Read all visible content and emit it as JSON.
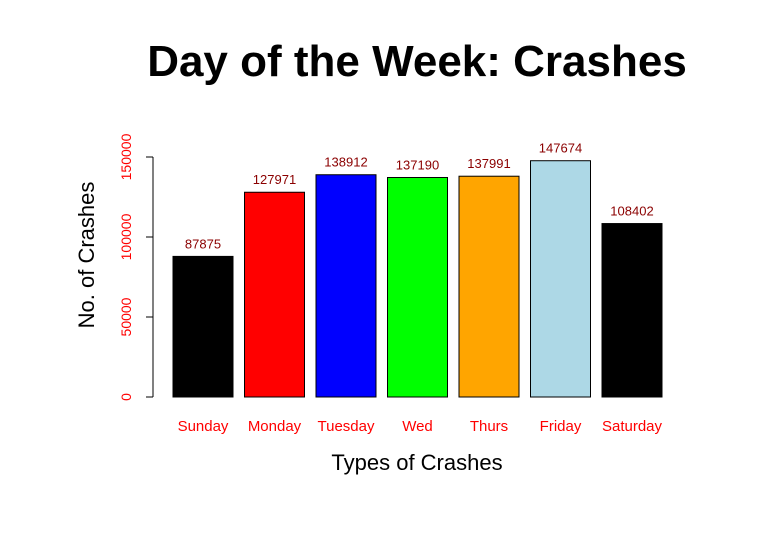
{
  "chart_data": {
    "type": "bar",
    "title": "Day of the Week: Crashes",
    "xlabel": "Types of Crashes",
    "ylabel": "No. of Crashes",
    "categories": [
      "Sunday",
      "Monday",
      "Tuesday",
      "Wed",
      "Thurs",
      "Friday",
      "Saturday"
    ],
    "values": [
      87875,
      127971,
      138912,
      137190,
      137991,
      147674,
      108402
    ],
    "colors": [
      "#000000",
      "#ff0000",
      "#0000ff",
      "#00ff00",
      "#ffa500",
      "#add8e6",
      "#000000"
    ],
    "ylim": [
      0,
      150000
    ],
    "yticks": [
      0,
      50000,
      100000,
      150000
    ],
    "grid": false,
    "legend": "none",
    "data_labels": true,
    "tick_label_color": "#ff0000",
    "value_label_color": "#8b0000"
  }
}
